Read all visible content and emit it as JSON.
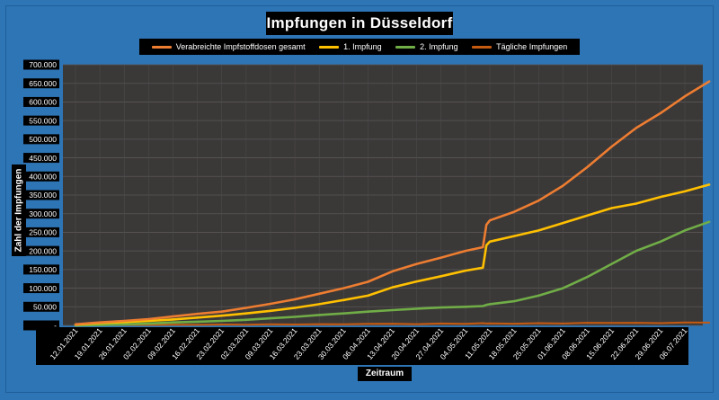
{
  "chart_data": {
    "type": "line",
    "title": "Impfungen in Düsseldorf",
    "xlabel": "Zeitraum",
    "ylabel": "Zahl der Impfungen",
    "ylim": [
      0,
      700000
    ],
    "y_ticks": [
      "-",
      "50.000",
      "100.000",
      "150.000",
      "200.000",
      "250.000",
      "300.000",
      "350.000",
      "400.000",
      "450.000",
      "500.000",
      "550.000",
      "600.000",
      "650.000",
      "700.000"
    ],
    "x_ticks": [
      "12.01.2021",
      "19.01.2021",
      "26.01.2021",
      "02.02.2021",
      "09.02.2021",
      "16.02.2021",
      "23.02.2021",
      "02.03.2021",
      "09.03.2021",
      "16.03.2021",
      "23.03.2021",
      "30.03.2021",
      "06.04.2021",
      "13.04.2021",
      "20.04.2021",
      "27.04.2021",
      "04.05.2021",
      "11.05.2021",
      "18.05.2021",
      "25.05.2021",
      "01.06.2021",
      "08.06.2021",
      "15.06.2021",
      "22.06.2021",
      "29.06.2021",
      "06.07.2021"
    ],
    "x": [
      "12.01.2021",
      "19.01.2021",
      "26.01.2021",
      "02.02.2021",
      "09.02.2021",
      "16.02.2021",
      "23.02.2021",
      "02.03.2021",
      "09.03.2021",
      "16.03.2021",
      "23.03.2021",
      "30.03.2021",
      "06.04.2021",
      "13.04.2021",
      "20.04.2021",
      "27.04.2021",
      "04.05.2021",
      "09.05.2021",
      "10.05.2021",
      "11.05.2021",
      "18.05.2021",
      "25.05.2021",
      "01.06.2021",
      "08.06.2021",
      "15.06.2021",
      "22.06.2021",
      "29.06.2021",
      "06.07.2021",
      "13.07.2021"
    ],
    "series": [
      {
        "name": "Verabreichte Impfstoffdosen gesamt",
        "color": "#ed7d31",
        "values": [
          3000,
          8000,
          12000,
          17000,
          24000,
          31000,
          37000,
          47000,
          58000,
          70000,
          85000,
          100000,
          117000,
          145000,
          165000,
          182000,
          200000,
          210000,
          270000,
          282000,
          305000,
          335000,
          375000,
          425000,
          480000,
          530000,
          570000,
          615000,
          655000
        ]
      },
      {
        "name": "1. Impfung",
        "color": "#ffc000",
        "values": [
          2000,
          6000,
          9000,
          12000,
          16000,
          21000,
          26000,
          32000,
          39000,
          47000,
          57000,
          68000,
          80000,
          102000,
          118000,
          132000,
          147000,
          155000,
          215000,
          225000,
          240000,
          255000,
          275000,
          295000,
          315000,
          327000,
          345000,
          360000,
          378000
        ]
      },
      {
        "name": "2. Impfung",
        "color": "#70ad47",
        "values": [
          0,
          1000,
          3000,
          5000,
          8000,
          10000,
          12000,
          15000,
          19000,
          23000,
          28000,
          32000,
          37000,
          41000,
          45000,
          48000,
          50000,
          52000,
          55000,
          57000,
          65000,
          80000,
          100000,
          130000,
          165000,
          200000,
          225000,
          255000,
          278000
        ]
      },
      {
        "name": "Tägliche Impfungen",
        "color": "#c55a11",
        "values": [
          500,
          1000,
          1500,
          1200,
          2000,
          1500,
          2500,
          2000,
          3000,
          2500,
          3500,
          3000,
          4000,
          4500,
          3500,
          5000,
          4000,
          6000,
          5000,
          5500,
          4500,
          6000,
          5000,
          7000,
          6500,
          7000,
          6000,
          8000,
          7500
        ]
      }
    ]
  }
}
